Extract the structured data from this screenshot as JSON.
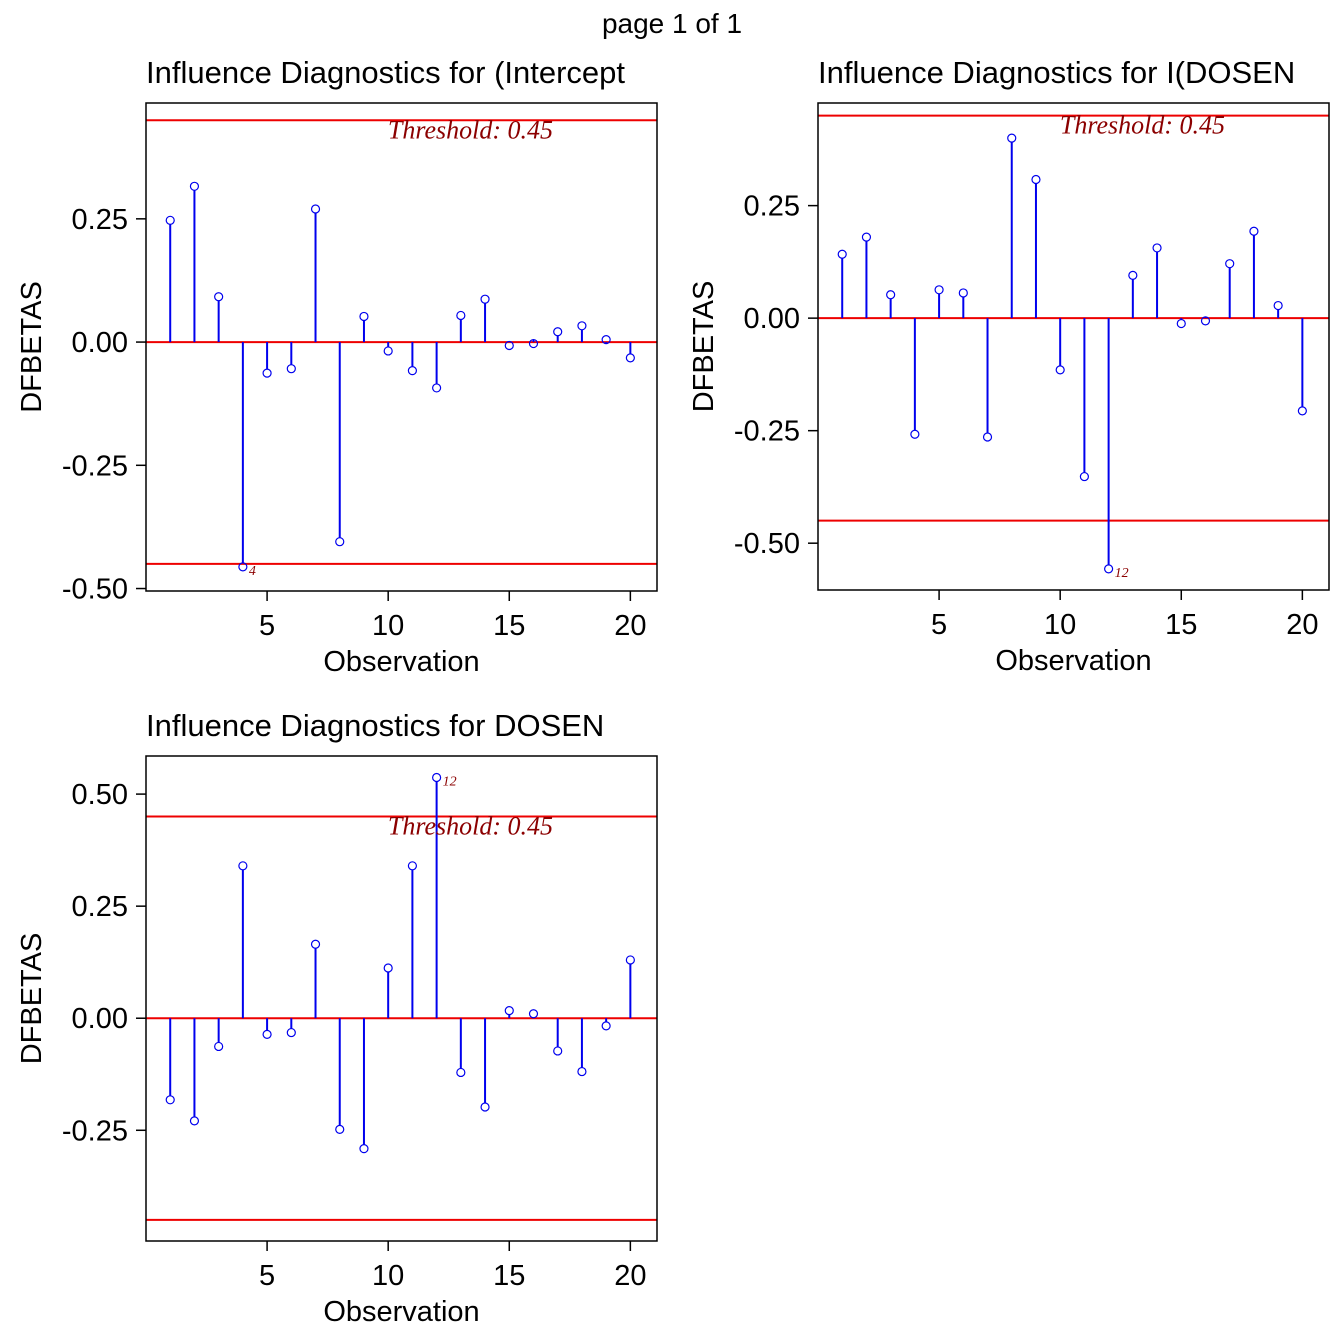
{
  "page_label": "page 1 of 1",
  "colors": {
    "stem": "#0000ee",
    "reference": "#ee0000",
    "threshold_text": "#8b0000",
    "axis": "#000000"
  },
  "chart_data": [
    {
      "type": "stem",
      "title": "Influence Diagnostics for (Intercept",
      "xlabel": "Observation",
      "ylabel": "DFBETAS",
      "xlim": [
        0,
        21.1
      ],
      "ylim": [
        -0.505,
        0.485
      ],
      "xticks": [
        5,
        10,
        15,
        20
      ],
      "xtick_labels": [
        "5",
        "10",
        "15",
        "20"
      ],
      "yticks": [
        -0.5,
        -0.25,
        0,
        0.25
      ],
      "ytick_labels": [
        "-0.50",
        "-0.25",
        "0.00",
        "0.25"
      ],
      "threshold": 0.45,
      "threshold_label": "Threshold: 0.45",
      "x": [
        1,
        2,
        3,
        4,
        5,
        6,
        7,
        8,
        9,
        10,
        11,
        12,
        13,
        14,
        15,
        16,
        17,
        18,
        19,
        20
      ],
      "values": [
        0.247,
        0.316,
        0.092,
        -0.456,
        -0.063,
        -0.054,
        0.27,
        -0.405,
        0.052,
        -0.018,
        -0.058,
        -0.093,
        0.054,
        0.087,
        -0.007,
        -0.003,
        0.021,
        0.033,
        0.005,
        -0.032
      ],
      "point_labels": [
        {
          "x": 4,
          "label": "4"
        }
      ]
    },
    {
      "type": "stem",
      "title": "Influence Diagnostics for I(DOSEN",
      "xlabel": "Observation",
      "ylabel": "DFBETAS",
      "xlim": [
        0,
        21.1
      ],
      "ylim": [
        -0.604,
        0.478
      ],
      "xticks": [
        5,
        10,
        15,
        20
      ],
      "xtick_labels": [
        "5",
        "10",
        "15",
        "20"
      ],
      "yticks": [
        -0.5,
        -0.25,
        0,
        0.25
      ],
      "ytick_labels": [
        "-0.50",
        "-0.25",
        "0.00",
        "0.25"
      ],
      "threshold": 0.45,
      "threshold_label": "Threshold: 0.45",
      "x": [
        1,
        2,
        3,
        4,
        5,
        6,
        7,
        8,
        9,
        10,
        11,
        12,
        13,
        14,
        15,
        16,
        17,
        18,
        19,
        20
      ],
      "values": [
        0.142,
        0.18,
        0.052,
        -0.258,
        0.063,
        0.056,
        -0.264,
        0.4,
        0.308,
        -0.115,
        -0.352,
        -0.557,
        0.095,
        0.156,
        -0.012,
        -0.006,
        0.121,
        0.193,
        0.028,
        -0.206
      ],
      "point_labels": [
        {
          "x": 12,
          "label": "12"
        }
      ]
    },
    {
      "type": "stem",
      "title": "Influence Diagnostics for DOSEN",
      "xlabel": "Observation",
      "ylabel": "DFBETAS",
      "xlim": [
        0,
        21.1
      ],
      "ylim": [
        -0.497,
        0.585
      ],
      "xticks": [
        5,
        10,
        15,
        20
      ],
      "xtick_labels": [
        "5",
        "10",
        "15",
        "20"
      ],
      "yticks": [
        -0.25,
        0,
        0.25,
        0.5
      ],
      "ytick_labels": [
        "-0.25",
        "0.00",
        "0.25",
        "0.50"
      ],
      "threshold": 0.45,
      "threshold_label": "Threshold: 0.45",
      "x": [
        1,
        2,
        3,
        4,
        5,
        6,
        7,
        8,
        9,
        10,
        11,
        12,
        13,
        14,
        15,
        16,
        17,
        18,
        19,
        20
      ],
      "values": [
        -0.182,
        -0.229,
        -0.063,
        0.34,
        -0.036,
        -0.032,
        0.165,
        -0.248,
        -0.291,
        0.112,
        0.34,
        0.537,
        -0.121,
        -0.198,
        0.017,
        0.01,
        -0.073,
        -0.119,
        -0.017,
        0.13
      ],
      "point_labels": [
        {
          "x": 12,
          "label": "12"
        }
      ]
    }
  ]
}
